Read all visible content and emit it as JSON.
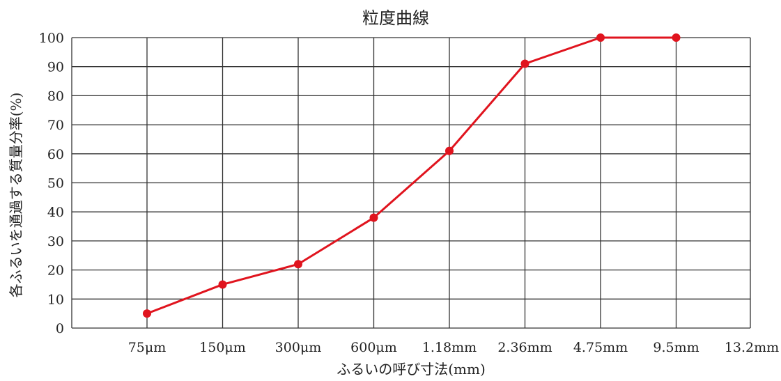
{
  "chart_data": {
    "type": "line",
    "title": "粒度曲線",
    "xlabel": "ふるいの呼び寸法(mm)",
    "ylabel": "各ふるいを通過する質量分率(%)",
    "categories": [
      "75μm",
      "150μm",
      "300μm",
      "600μm",
      "1.18mm",
      "2.36mm",
      "4.75mm",
      "9.5mm",
      "13.2mm"
    ],
    "series": [
      {
        "values": [
          5,
          15,
          22,
          38,
          61,
          91,
          100,
          100,
          null
        ]
      }
    ],
    "ylim": [
      0,
      100
    ],
    "yticks": [
      0,
      10,
      20,
      30,
      40,
      50,
      60,
      70,
      80,
      90,
      100
    ],
    "grid": true,
    "legend": "none",
    "colors": {
      "line": "#e0141e",
      "grid": "#333333"
    }
  }
}
